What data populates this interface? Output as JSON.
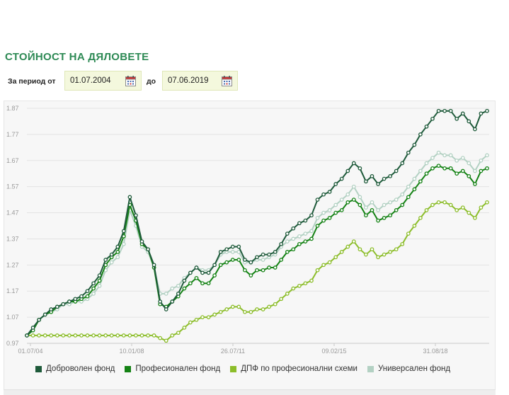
{
  "page": {
    "title": "СТОЙНОСТ НА ДЯЛОВЕТЕ"
  },
  "period": {
    "from_label": "За период от",
    "from_value": "01.07.2004",
    "to_label": "до",
    "to_value": "07.06.2019"
  },
  "icons": {
    "calendar": "calendar-icon"
  },
  "colors": {
    "title": "#2e8a55",
    "dobrovolen": "#1e5a3a",
    "profesionalen": "#148214",
    "dpf_prof": "#8cbd2a",
    "universalen": "#b3d1c3"
  },
  "chart_data": {
    "type": "line",
    "xlabel": "",
    "ylabel": "",
    "ylim": [
      0.97,
      1.87
    ],
    "yticks": [
      "1.87",
      "1.77",
      "1.67",
      "1.57",
      "1.47",
      "1.37",
      "1.27",
      "1.17",
      "1.07",
      "0.97"
    ],
    "xtick_labels": [
      "01.07/04",
      "10.01/08",
      "26.07/11",
      "09.02/15",
      "31.08/18"
    ],
    "grid": "horizontal",
    "legend": "bottom",
    "series": [
      {
        "name": "Доброволен фонд",
        "color": "#1e5a3a",
        "values": [
          1.0,
          1.03,
          1.06,
          1.08,
          1.1,
          1.11,
          1.12,
          1.13,
          1.14,
          1.15,
          1.17,
          1.2,
          1.23,
          1.29,
          1.31,
          1.34,
          1.4,
          1.53,
          1.46,
          1.36,
          1.33,
          1.27,
          1.13,
          1.1,
          1.13,
          1.16,
          1.21,
          1.24,
          1.26,
          1.24,
          1.24,
          1.27,
          1.32,
          1.33,
          1.34,
          1.34,
          1.29,
          1.28,
          1.3,
          1.31,
          1.31,
          1.32,
          1.35,
          1.39,
          1.41,
          1.43,
          1.44,
          1.46,
          1.52,
          1.54,
          1.55,
          1.58,
          1.6,
          1.63,
          1.66,
          1.64,
          1.59,
          1.61,
          1.58,
          1.6,
          1.61,
          1.63,
          1.66,
          1.7,
          1.73,
          1.77,
          1.8,
          1.83,
          1.86,
          1.86,
          1.86,
          1.83,
          1.85,
          1.82,
          1.79,
          1.85,
          1.86
        ]
      },
      {
        "name": "Професионален фонд",
        "color": "#148214",
        "values": [
          1.0,
          1.02,
          1.06,
          1.08,
          1.09,
          1.11,
          1.12,
          1.13,
          1.13,
          1.14,
          1.15,
          1.18,
          1.21,
          1.27,
          1.3,
          1.32,
          1.38,
          1.5,
          1.44,
          1.35,
          1.33,
          1.26,
          1.12,
          1.11,
          1.13,
          1.15,
          1.18,
          1.2,
          1.22,
          1.2,
          1.2,
          1.23,
          1.27,
          1.28,
          1.29,
          1.29,
          1.25,
          1.23,
          1.25,
          1.25,
          1.26,
          1.26,
          1.29,
          1.32,
          1.33,
          1.35,
          1.36,
          1.37,
          1.42,
          1.44,
          1.45,
          1.47,
          1.48,
          1.51,
          1.52,
          1.5,
          1.46,
          1.48,
          1.44,
          1.45,
          1.46,
          1.48,
          1.5,
          1.53,
          1.56,
          1.59,
          1.62,
          1.64,
          1.65,
          1.64,
          1.64,
          1.62,
          1.63,
          1.61,
          1.58,
          1.63,
          1.64
        ]
      },
      {
        "name": "ДПФ по професионални схеми",
        "color": "#8cbd2a",
        "values": [
          1.0,
          1.0,
          1.0,
          1.0,
          1.0,
          1.0,
          1.0,
          1.0,
          1.0,
          1.0,
          1.0,
          1.0,
          1.0,
          1.0,
          1.0,
          1.0,
          1.0,
          1.0,
          1.0,
          1.0,
          1.0,
          1.0,
          0.99,
          0.98,
          1.0,
          1.01,
          1.03,
          1.05,
          1.06,
          1.07,
          1.07,
          1.08,
          1.09,
          1.1,
          1.11,
          1.11,
          1.09,
          1.09,
          1.1,
          1.1,
          1.11,
          1.12,
          1.14,
          1.16,
          1.18,
          1.19,
          1.2,
          1.21,
          1.25,
          1.27,
          1.28,
          1.3,
          1.32,
          1.34,
          1.36,
          1.33,
          1.31,
          1.33,
          1.3,
          1.31,
          1.32,
          1.33,
          1.35,
          1.39,
          1.42,
          1.45,
          1.48,
          1.5,
          1.51,
          1.51,
          1.5,
          1.48,
          1.49,
          1.47,
          1.45,
          1.49,
          1.51
        ]
      },
      {
        "name": "Универсален фонд",
        "color": "#b3d1c3",
        "values": [
          1.0,
          1.02,
          1.06,
          1.08,
          1.09,
          1.1,
          1.12,
          1.12,
          1.13,
          1.13,
          1.14,
          1.16,
          1.19,
          1.25,
          1.28,
          1.3,
          1.35,
          1.48,
          1.42,
          1.34,
          1.32,
          1.26,
          1.16,
          1.16,
          1.18,
          1.19,
          1.22,
          1.24,
          1.26,
          1.25,
          1.25,
          1.27,
          1.31,
          1.32,
          1.32,
          1.32,
          1.28,
          1.28,
          1.29,
          1.29,
          1.3,
          1.31,
          1.34,
          1.36,
          1.37,
          1.38,
          1.39,
          1.4,
          1.45,
          1.47,
          1.48,
          1.5,
          1.52,
          1.54,
          1.57,
          1.53,
          1.49,
          1.51,
          1.48,
          1.5,
          1.51,
          1.52,
          1.54,
          1.57,
          1.6,
          1.63,
          1.66,
          1.68,
          1.7,
          1.69,
          1.69,
          1.67,
          1.68,
          1.66,
          1.63,
          1.67,
          1.69
        ]
      }
    ]
  }
}
